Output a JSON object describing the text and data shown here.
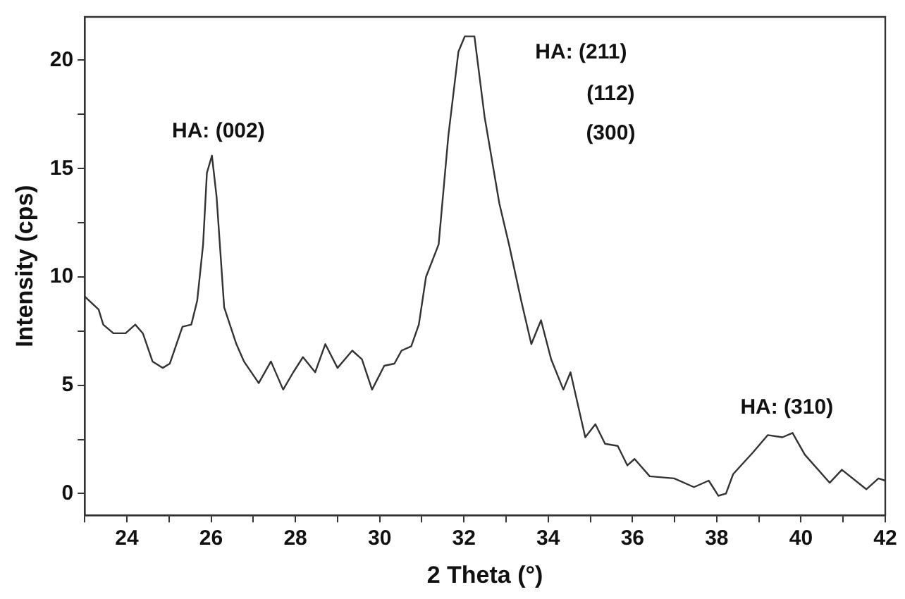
{
  "chart_data": {
    "type": "line",
    "xlabel": "2 Theta (°)",
    "ylabel": "Intensity (cps)",
    "xlim": [
      23,
      42
    ],
    "ylim": [
      -1,
      22
    ],
    "xticks": [
      {
        "value": 23,
        "label": null
      },
      24,
      {
        "value": 25,
        "label": null
      },
      26,
      {
        "value": 27,
        "label": null
      },
      28,
      {
        "value": 29,
        "label": null
      },
      30,
      {
        "value": 31,
        "label": null
      },
      32,
      {
        "value": 33,
        "label": null
      },
      34,
      {
        "value": 35,
        "label": null
      },
      36,
      {
        "value": 37,
        "label": null
      },
      38,
      {
        "value": 39,
        "label": null
      },
      40,
      {
        "value": 41,
        "label": null
      },
      42
    ],
    "yticks": [
      0,
      {
        "value": 2.5,
        "label": null
      },
      5,
      {
        "value": 7.5,
        "label": null
      },
      10,
      {
        "value": 12.5,
        "label": null
      },
      15,
      {
        "value": 17.5,
        "label": null
      },
      20
    ],
    "grid": false,
    "legend": false,
    "marker": "none",
    "line_style": "solid",
    "series": [
      {
        "color": "#333333",
        "x": [
          23.0,
          23.33,
          23.44,
          23.68,
          23.97,
          24.2,
          24.38,
          24.61,
          24.85,
          25.02,
          25.32,
          25.53,
          25.67,
          25.81,
          25.9,
          26.02,
          26.13,
          26.31,
          26.6,
          26.78,
          27.13,
          27.42,
          27.71,
          27.95,
          28.18,
          28.47,
          28.71,
          29.0,
          29.35,
          29.58,
          29.82,
          30.11,
          30.35,
          30.52,
          30.75,
          30.93,
          31.1,
          31.4,
          31.63,
          31.87,
          32.02,
          32.25,
          32.49,
          32.84,
          33.07,
          33.36,
          33.6,
          33.83,
          34.07,
          34.36,
          34.53,
          34.88,
          35.12,
          35.35,
          35.65,
          35.88,
          36.05,
          36.41,
          36.99,
          37.46,
          37.81,
          38.04,
          38.22,
          38.39,
          38.86,
          39.21,
          39.56,
          39.8,
          40.09,
          40.68,
          40.97,
          41.55,
          41.84,
          42.0
        ],
        "values": [
          9.1,
          8.5,
          7.8,
          7.4,
          7.4,
          7.8,
          7.4,
          6.1,
          5.8,
          6.0,
          7.7,
          7.8,
          8.9,
          11.5,
          14.8,
          15.6,
          13.7,
          8.6,
          6.9,
          6.1,
          5.1,
          6.1,
          4.8,
          5.6,
          6.3,
          5.6,
          6.9,
          5.8,
          6.6,
          6.2,
          4.8,
          5.9,
          6.0,
          6.6,
          6.8,
          7.8,
          10.0,
          11.5,
          16.5,
          20.4,
          21.1,
          21.1,
          17.4,
          13.4,
          11.5,
          8.9,
          6.9,
          8.0,
          6.2,
          4.8,
          5.6,
          2.6,
          3.2,
          2.3,
          2.2,
          1.3,
          1.6,
          0.8,
          0.7,
          0.3,
          0.6,
          -0.1,
          0.0,
          0.9,
          1.9,
          2.7,
          2.6,
          2.8,
          1.8,
          0.5,
          1.1,
          0.2,
          0.7,
          0.6
        ]
      }
    ],
    "annotations": [
      "HA: (002)",
      "HA: (211)",
      "(112)",
      "(300)",
      "HA: (310)"
    ]
  }
}
